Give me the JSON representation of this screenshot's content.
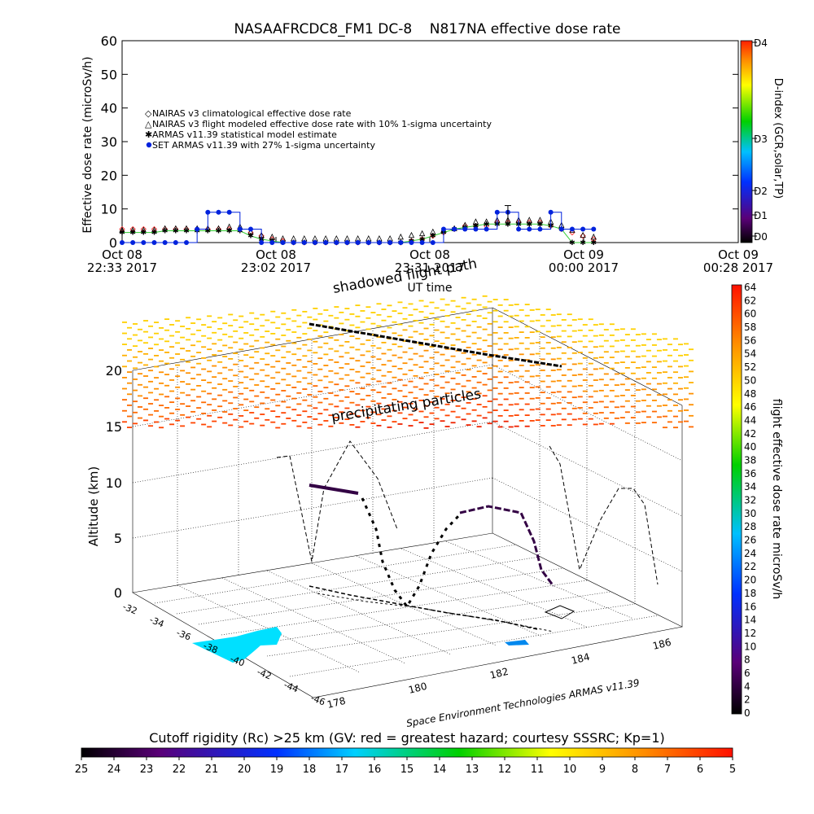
{
  "top_chart": {
    "title": "NASAAFRCDC8_FM1 DC-8    N817NA effective dose rate",
    "ylabel": "Effective dose rate  (microSv/h)",
    "xlabel": "UT time",
    "y_ticks": [
      "0",
      "10",
      "20",
      "30",
      "40",
      "50",
      "60"
    ],
    "x_ticks": [
      {
        "l1": "Oct 08",
        "l2": "22:33 2017"
      },
      {
        "l1": "Oct 08",
        "l2": "23:02 2017"
      },
      {
        "l1": "Oct 08",
        "l2": "23:31 2017"
      },
      {
        "l1": "Oct 09",
        "l2": "00:00 2017"
      },
      {
        "l1": "Oct 09",
        "l2": "00:28 2017"
      }
    ],
    "legend": [
      "NAIRAS v3 climatological effective dose rate",
      "NAIRAS v3 flight modeled effective dose rate with 10% 1-sigma uncertainty",
      "ARMAS v11.39 statistical model estimate",
      "SET ARMAS v11.39 with 27% 1-sigma uncertainty"
    ],
    "dindex_label": "D-index (GCR,solar,TP)",
    "dindex_ticks": [
      "D0",
      "D1",
      "D2",
      "D3",
      "D4"
    ]
  },
  "chart_data": [
    {
      "type": "line",
      "title": "NASAAFRCDC8_FM1 DC-8    N817NA effective dose rate",
      "xlabel": "UT time",
      "ylabel": "Effective dose rate  (microSv/h)",
      "ylim": [
        0,
        60
      ],
      "xlim": [
        "22:33",
        "00:28"
      ],
      "x": [
        "22:33",
        "22:35",
        "22:37",
        "22:39",
        "22:41",
        "22:43",
        "22:45",
        "22:47",
        "22:49",
        "22:51",
        "22:53",
        "22:55",
        "22:57",
        "22:59",
        "23:01",
        "23:03",
        "23:05",
        "23:07",
        "23:09",
        "23:11",
        "23:13",
        "23:15",
        "23:17",
        "23:19",
        "23:21",
        "23:23",
        "23:25",
        "23:27",
        "23:29",
        "23:31",
        "23:33",
        "23:35",
        "23:37",
        "23:39",
        "23:41",
        "23:43",
        "23:45",
        "23:47",
        "23:49",
        "23:51",
        "23:53",
        "23:55",
        "23:57",
        "23:59",
        "00:01"
      ],
      "series": [
        {
          "name": "NAIRAS v3 climatological effective dose rate",
          "values": [
            4,
            4,
            4,
            4,
            4,
            4,
            4,
            4,
            4,
            4,
            4,
            4,
            3,
            2,
            1,
            0.5,
            0,
            0,
            0,
            0,
            0,
            0,
            0,
            0,
            0,
            0,
            0,
            0.5,
            1,
            2,
            3,
            4,
            5,
            5,
            5,
            6,
            6,
            6,
            6,
            6,
            5,
            4,
            3,
            2,
            1
          ]
        },
        {
          "name": "NAIRAS v3 flight modeled effective dose rate with 10% 1-sigma uncertainty",
          "values": [
            3.5,
            3.5,
            3.5,
            3.5,
            4,
            4,
            4,
            4,
            4,
            4,
            4.5,
            4.5,
            3,
            2,
            1.5,
            1,
            1,
            1,
            1,
            1,
            1,
            1,
            1,
            1,
            1,
            1,
            1.5,
            2,
            2.5,
            3,
            3.5,
            4,
            5,
            6,
            6,
            6.5,
            6.5,
            6.5,
            6.5,
            6.5,
            6,
            5,
            3.5,
            2,
            1.5
          ]
        },
        {
          "name": "ARMAS v11.39 statistical model estimate",
          "values": [
            3,
            3,
            3,
            3,
            3.5,
            3.5,
            3.5,
            3.5,
            3.5,
            3.5,
            3.5,
            3.5,
            2,
            1,
            0.5,
            0,
            0,
            0,
            0,
            0,
            0,
            0,
            0,
            0,
            0,
            0,
            0,
            0.5,
            1,
            2,
            3,
            4,
            4.5,
            5,
            5.5,
            5.5,
            5.5,
            5.5,
            5.5,
            5.5,
            5,
            4,
            0,
            0,
            0
          ]
        },
        {
          "name": "SET ARMAS v11.39 with 27% 1-sigma uncertainty",
          "values": [
            0,
            0,
            0,
            0,
            0,
            0,
            0,
            4,
            9,
            9,
            9,
            4,
            4,
            0,
            0,
            0,
            0,
            0,
            0,
            0,
            0,
            0,
            0,
            0,
            0,
            0,
            0,
            0,
            0,
            0,
            4,
            4,
            4,
            4,
            4,
            9,
            9,
            4,
            4,
            4,
            9,
            4,
            4,
            4,
            4
          ]
        }
      ]
    },
    {
      "type": "scatter",
      "title": "precipitating particles",
      "annotations": [
        "shadowed flight path",
        "precipitating particles",
        "Space Environment Technologies ARMAS v11.39"
      ],
      "zlabel": "Altitude (km)",
      "zlim": [
        0,
        20
      ],
      "z_ticks": [
        "0",
        "5",
        "10",
        "15",
        "20"
      ],
      "lat_ticks": [
        "-32",
        "-34",
        "-36",
        "-38",
        "-40",
        "-42",
        "-44",
        "-46"
      ],
      "lon_ticks": [
        "178",
        "180",
        "182",
        "184",
        "186"
      ],
      "colorbar_label": "flight effective dose rate microSv/h",
      "colorbar_ticks": [
        "0",
        "2",
        "4",
        "6",
        "8",
        "10",
        "12",
        "14",
        "16",
        "18",
        "20",
        "22",
        "24",
        "26",
        "28",
        "30",
        "32",
        "34",
        "36",
        "38",
        "40",
        "42",
        "44",
        "46",
        "48",
        "50",
        "52",
        "54",
        "56",
        "58",
        "60",
        "62",
        "64"
      ],
      "colorbar_range": [
        0,
        64
      ]
    }
  ],
  "bottom_bar": {
    "label": "Cutoff rigidity (Rc) >25 km (GV: red = greatest hazard; courtesy SSSRC; Kp=1)",
    "ticks": [
      "25",
      "24",
      "23",
      "22",
      "21",
      "20",
      "19",
      "18",
      "17",
      "16",
      "15",
      "14",
      "13",
      "12",
      "11",
      "10",
      "9",
      "8",
      "7",
      "6",
      "5"
    ]
  },
  "colors": {
    "series_climatological": "#ff3030",
    "series_flight_modeled": "#000000",
    "series_armas_model": "#33cc33",
    "series_set_armas": "#0022dd"
  }
}
